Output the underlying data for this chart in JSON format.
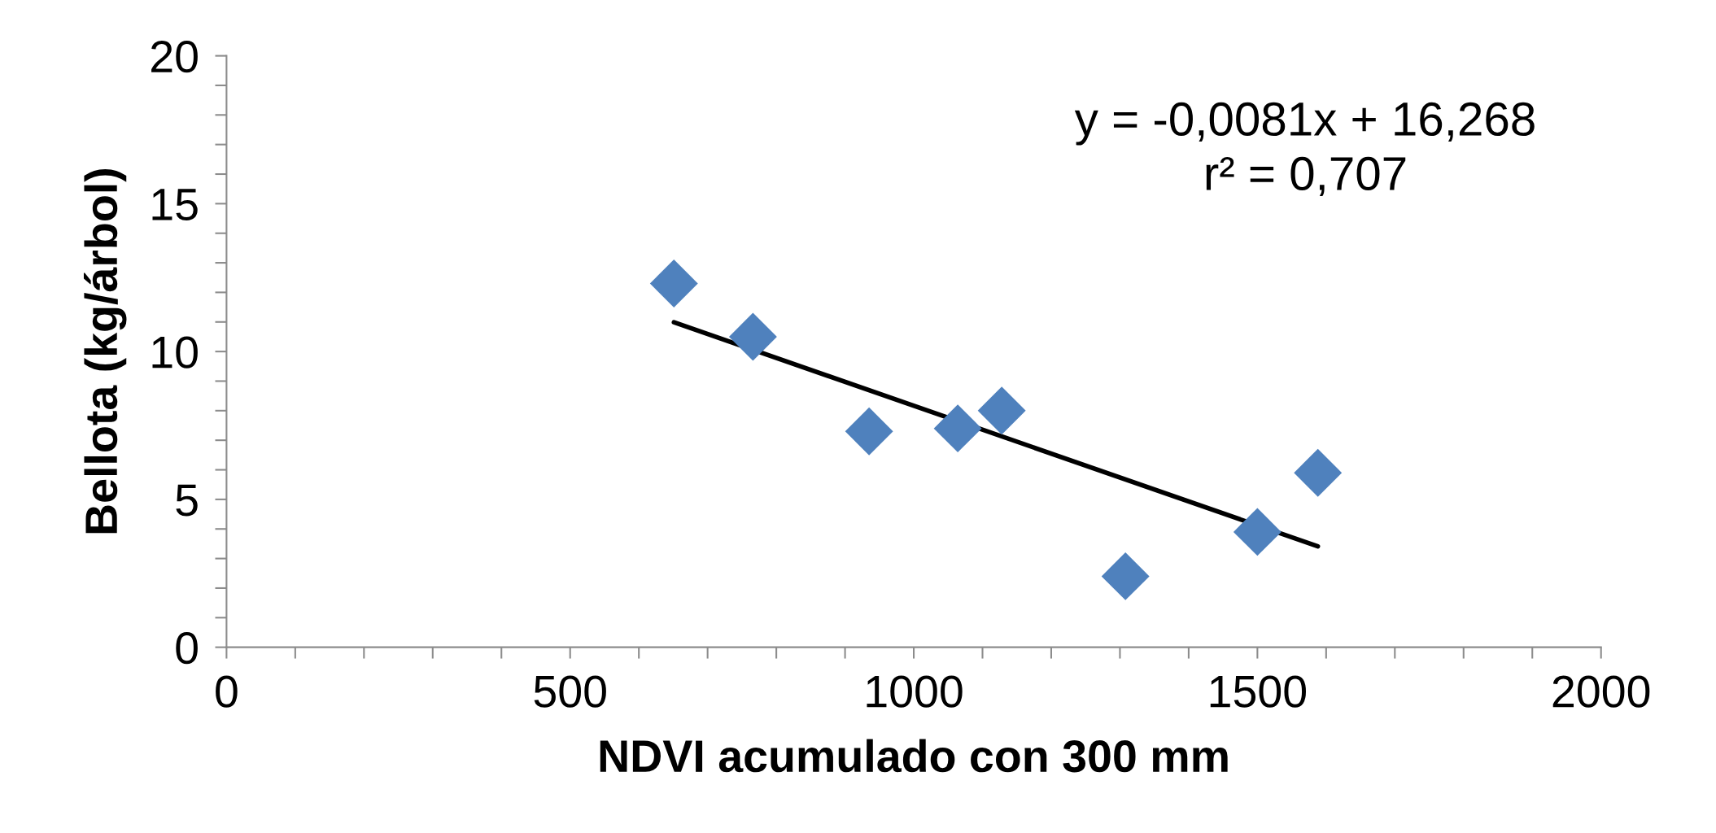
{
  "chart_data": {
    "type": "scatter",
    "xlabel": "NDVI acumulado con 300 mm",
    "ylabel": "Bellota (kg/árbol)",
    "x": [
      651,
      766,
      935,
      1064,
      1128,
      1308,
      1500,
      1588
    ],
    "series": [
      {
        "type": "scatter",
        "color": "#4f81bd",
        "marker": "diamond",
        "values": [
          12.3,
          10.5,
          7.3,
          7.4,
          8.0,
          2.4,
          3.9,
          5.9
        ]
      },
      {
        "type": "line",
        "color": "#000000",
        "x": [
          651,
          1588
        ],
        "values": [
          10.99,
          3.41
        ]
      }
    ],
    "annotations": [
      "y = -0,0081x + 16,268\nr² = 0,707"
    ],
    "xlim": [
      0,
      2000
    ],
    "ylim": [
      0,
      20
    ],
    "xticks": [
      0,
      {
        "value": 100,
        "label": null
      },
      {
        "value": 200,
        "label": null
      },
      {
        "value": 300,
        "label": null
      },
      {
        "value": 400,
        "label": null
      },
      500,
      {
        "value": 600,
        "label": null
      },
      {
        "value": 700,
        "label": null
      },
      {
        "value": 800,
        "label": null
      },
      {
        "value": 900,
        "label": null
      },
      1000,
      {
        "value": 1100,
        "label": null
      },
      {
        "value": 1200,
        "label": null
      },
      {
        "value": 1300,
        "label": null
      },
      {
        "value": 1400,
        "label": null
      },
      1500,
      {
        "value": 1600,
        "label": null
      },
      {
        "value": 1700,
        "label": null
      },
      {
        "value": 1800,
        "label": null
      },
      {
        "value": 1900,
        "label": null
      },
      2000
    ],
    "yticks": [
      0,
      {
        "value": 1,
        "label": null
      },
      {
        "value": 2,
        "label": null
      },
      {
        "value": 3,
        "label": null
      },
      {
        "value": 4,
        "label": null
      },
      5,
      {
        "value": 6,
        "label": null
      },
      {
        "value": 7,
        "label": null
      },
      {
        "value": 8,
        "label": null
      },
      {
        "value": 9,
        "label": null
      },
      10,
      {
        "value": 11,
        "label": null
      },
      {
        "value": 12,
        "label": null
      },
      {
        "value": 13,
        "label": null
      },
      {
        "value": 14,
        "label": null
      },
      15,
      {
        "value": 16,
        "label": null
      },
      {
        "value": 17,
        "label": null
      },
      {
        "value": 18,
        "label": null
      },
      {
        "value": 19,
        "label": null
      },
      20
    ],
    "grid": false,
    "legend": false
  }
}
